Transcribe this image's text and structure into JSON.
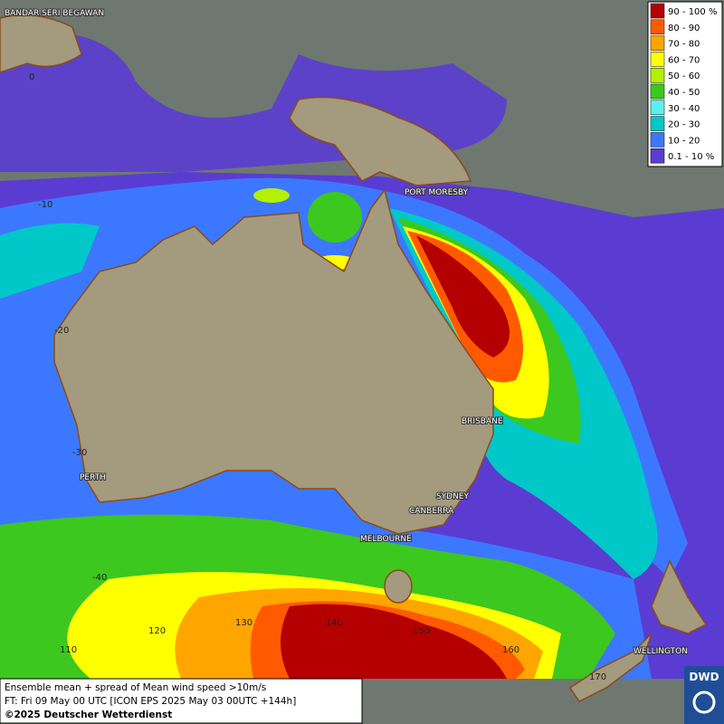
{
  "map": {
    "places": [
      "BANDAR SERI BEGAWAN",
      "PORT MORESBY",
      "BRISBANE",
      "SYDNEY",
      "CANBERRA",
      "MELBOURNE",
      "PERTH",
      "WELLINGTON"
    ],
    "latitudes": [
      "0",
      "-10",
      "-20",
      "-30",
      "-40"
    ],
    "longitudes": [
      "110",
      "120",
      "130",
      "140",
      "150",
      "160",
      "170"
    ]
  },
  "legend": [
    {
      "label": "90 - 100 %",
      "color": "#b40000"
    },
    {
      "label": "80 - 90",
      "color": "#ff5a00"
    },
    {
      "label": "70 - 80",
      "color": "#ffa500"
    },
    {
      "label": "60 - 70",
      "color": "#ffff00"
    },
    {
      "label": "50 - 60",
      "color": "#b4f000"
    },
    {
      "label": "40 - 50",
      "color": "#3cc81e"
    },
    {
      "label": "30 - 40",
      "color": "#5af0f0"
    },
    {
      "label": "20 - 30",
      "color": "#00c8c8"
    },
    {
      "label": "10 - 20",
      "color": "#3c78ff"
    },
    {
      "label": "0.1 - 10 %",
      "color": "#5a3cd2"
    }
  ],
  "footer": {
    "lines": [
      "Ensemble mean + spread of Mean wind speed >10m/s",
      "FT: Fri 09 May 00 UTC [ICON EPS 2025 May 03 00UTC +144h]",
      "©2025 Deutscher Wetterdienst"
    ],
    "logo": "DWD"
  }
}
